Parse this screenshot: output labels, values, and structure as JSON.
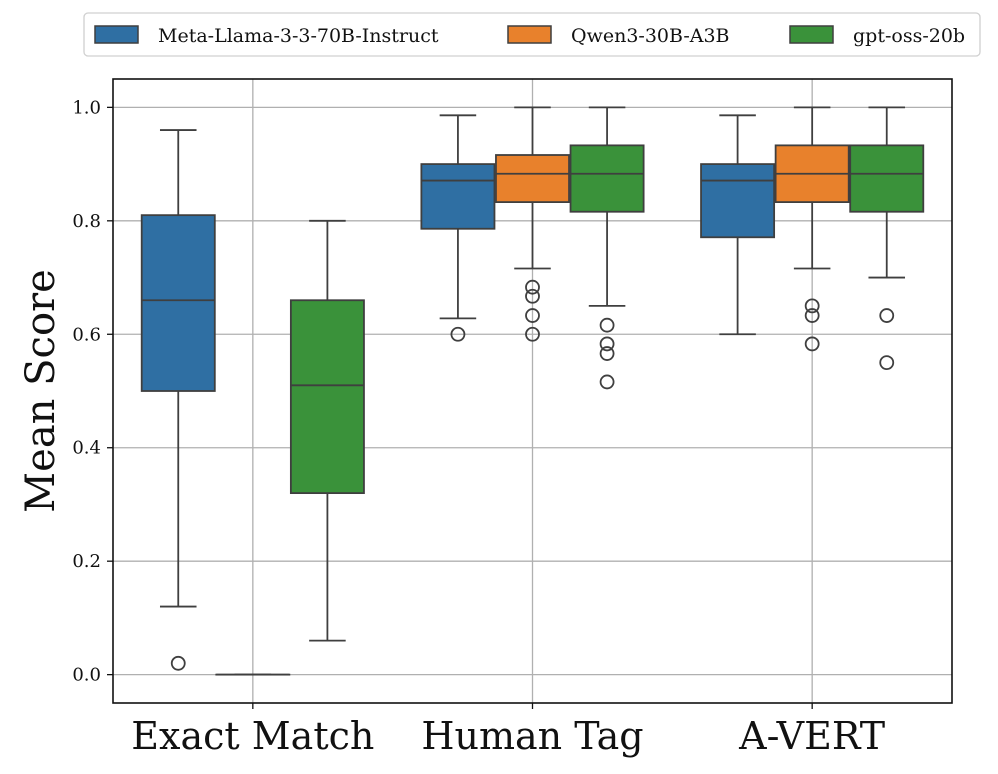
{
  "chart_data": {
    "type": "box",
    "title": "",
    "xlabel": "",
    "ylabel": "Mean Score",
    "ylim": [
      -0.05,
      1.05
    ],
    "yticks": [
      0.0,
      0.2,
      0.4,
      0.6,
      0.8,
      1.0
    ],
    "ytick_labels": [
      "0.0",
      "0.2",
      "0.4",
      "0.6",
      "0.8",
      "1.0"
    ],
    "grid": true,
    "legend_position": "top",
    "categories": [
      "Exact Match",
      "Human Tag",
      "A-VERT"
    ],
    "series": [
      {
        "name": "Meta-Llama-3-3-70B-Instruct",
        "color": "#2f6fa3",
        "boxes": [
          {
            "whisker_low": 0.12,
            "q1": 0.5,
            "median": 0.66,
            "q3": 0.81,
            "whisker_high": 0.96,
            "outliers": [
              0.02
            ]
          },
          {
            "whisker_low": 0.628,
            "q1": 0.786,
            "median": 0.871,
            "q3": 0.9,
            "whisker_high": 0.986,
            "outliers": [
              0.6
            ]
          },
          {
            "whisker_low": 0.6,
            "q1": 0.771,
            "median": 0.871,
            "q3": 0.9,
            "whisker_high": 0.986,
            "outliers": []
          }
        ]
      },
      {
        "name": "Qwen3-30B-A3B",
        "color": "#e8812c",
        "boxes": [
          {
            "whisker_low": 0.0,
            "q1": 0.0,
            "median": 0.0,
            "q3": 0.0,
            "whisker_high": 0.0,
            "outliers": []
          },
          {
            "whisker_low": 0.716,
            "q1": 0.833,
            "median": 0.883,
            "q3": 0.916,
            "whisker_high": 1.0,
            "outliers": [
              0.683,
              0.667,
              0.633,
              0.6
            ]
          },
          {
            "whisker_low": 0.716,
            "q1": 0.833,
            "median": 0.883,
            "q3": 0.933,
            "whisker_high": 1.0,
            "outliers": [
              0.65,
              0.633,
              0.583
            ]
          }
        ]
      },
      {
        "name": "gpt-oss-20b",
        "color": "#3a923a",
        "boxes": [
          {
            "whisker_low": 0.06,
            "q1": 0.32,
            "median": 0.51,
            "q3": 0.66,
            "whisker_high": 0.8,
            "outliers": []
          },
          {
            "whisker_low": 0.65,
            "q1": 0.816,
            "median": 0.883,
            "q3": 0.933,
            "whisker_high": 1.0,
            "outliers": [
              0.616,
              0.583,
              0.566,
              0.516
            ]
          },
          {
            "whisker_low": 0.7,
            "q1": 0.816,
            "median": 0.883,
            "q3": 0.933,
            "whisker_high": 1.0,
            "outliers": [
              0.633,
              0.55
            ]
          }
        ]
      }
    ]
  }
}
